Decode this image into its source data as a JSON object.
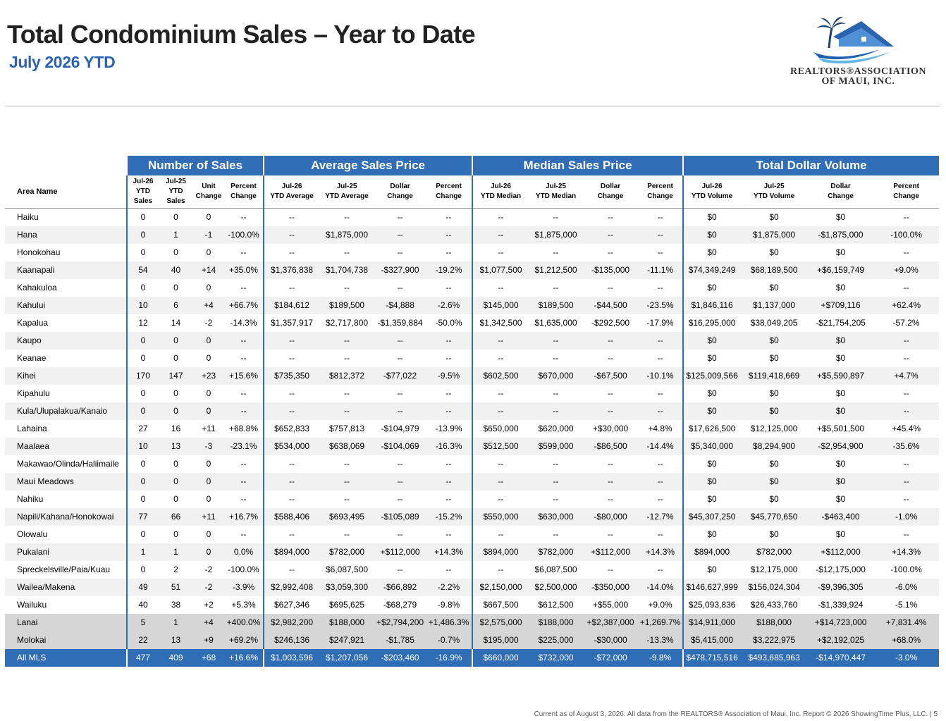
{
  "title": "Total Condominium Sales – Year to Date",
  "subtitle": "July 2026 YTD",
  "logo": {
    "line1": "REALTORS®ASSOCIATION",
    "line2": "OF MAUI, INC.",
    "icon": "palm-house-wave-logo"
  },
  "table": {
    "groups": [
      "Number of Sales",
      "Average Sales Price",
      "Median Sales Price",
      "Total Dollar Volume"
    ],
    "area_header": "Area Name",
    "columns": [
      [
        "Jul-26",
        "YTD",
        "Sales"
      ],
      [
        "Jul-25",
        "YTD",
        "Sales"
      ],
      [
        "Unit",
        "Change"
      ],
      [
        "Percent",
        "Change"
      ],
      [
        "Jul-26",
        "YTD Average"
      ],
      [
        "Jul-25",
        "YTD Average"
      ],
      [
        "Dollar",
        "Change"
      ],
      [
        "Percent",
        "Change"
      ],
      [
        "Jul-26",
        "YTD Median"
      ],
      [
        "Jul-25",
        "YTD Median"
      ],
      [
        "Dollar",
        "Change"
      ],
      [
        "Percent",
        "Change"
      ],
      [
        "Jul-26",
        "YTD Volume"
      ],
      [
        "Jul-25",
        "YTD Volume"
      ],
      [
        "Dollar",
        "Change"
      ],
      [
        "Percent",
        "Change"
      ]
    ],
    "rows": [
      [
        "Haiku",
        "0",
        "0",
        "0",
        "--",
        "--",
        "--",
        "--",
        "--",
        "--",
        "--",
        "--",
        "--",
        "$0",
        "$0",
        "$0",
        "--"
      ],
      [
        "Hana",
        "0",
        "1",
        "-1",
        "-100.0%",
        "--",
        "$1,875,000",
        "--",
        "--",
        "--",
        "$1,875,000",
        "--",
        "--",
        "$0",
        "$1,875,000",
        "-$1,875,000",
        "-100.0%"
      ],
      [
        "Honokohau",
        "0",
        "0",
        "0",
        "--",
        "--",
        "--",
        "--",
        "--",
        "--",
        "--",
        "--",
        "--",
        "$0",
        "$0",
        "$0",
        "--"
      ],
      [
        "Kaanapali",
        "54",
        "40",
        "+14",
        "+35.0%",
        "$1,376,838",
        "$1,704,738",
        "-$327,900",
        "-19.2%",
        "$1,077,500",
        "$1,212,500",
        "-$135,000",
        "-11.1%",
        "$74,349,249",
        "$68,189,500",
        "+$6,159,749",
        "+9.0%"
      ],
      [
        "Kahakuloa",
        "0",
        "0",
        "0",
        "--",
        "--",
        "--",
        "--",
        "--",
        "--",
        "--",
        "--",
        "--",
        "$0",
        "$0",
        "$0",
        "--"
      ],
      [
        "Kahului",
        "10",
        "6",
        "+4",
        "+66.7%",
        "$184,612",
        "$189,500",
        "-$4,888",
        "-2.6%",
        "$145,000",
        "$189,500",
        "-$44,500",
        "-23.5%",
        "$1,846,116",
        "$1,137,000",
        "+$709,116",
        "+62.4%"
      ],
      [
        "Kapalua",
        "12",
        "14",
        "-2",
        "-14.3%",
        "$1,357,917",
        "$2,717,800",
        "-$1,359,884",
        "-50.0%",
        "$1,342,500",
        "$1,635,000",
        "-$292,500",
        "-17.9%",
        "$16,295,000",
        "$38,049,205",
        "-$21,754,205",
        "-57.2%"
      ],
      [
        "Kaupo",
        "0",
        "0",
        "0",
        "--",
        "--",
        "--",
        "--",
        "--",
        "--",
        "--",
        "--",
        "--",
        "$0",
        "$0",
        "$0",
        "--"
      ],
      [
        "Keanae",
        "0",
        "0",
        "0",
        "--",
        "--",
        "--",
        "--",
        "--",
        "--",
        "--",
        "--",
        "--",
        "$0",
        "$0",
        "$0",
        "--"
      ],
      [
        "Kihei",
        "170",
        "147",
        "+23",
        "+15.6%",
        "$735,350",
        "$812,372",
        "-$77,022",
        "-9.5%",
        "$602,500",
        "$670,000",
        "-$67,500",
        "-10.1%",
        "$125,009,566",
        "$119,418,669",
        "+$5,590,897",
        "+4.7%"
      ],
      [
        "Kipahulu",
        "0",
        "0",
        "0",
        "--",
        "--",
        "--",
        "--",
        "--",
        "--",
        "--",
        "--",
        "--",
        "$0",
        "$0",
        "$0",
        "--"
      ],
      [
        "Kula/Ulupalakua/Kanaio",
        "0",
        "0",
        "0",
        "--",
        "--",
        "--",
        "--",
        "--",
        "--",
        "--",
        "--",
        "--",
        "$0",
        "$0",
        "$0",
        "--"
      ],
      [
        "Lahaina",
        "27",
        "16",
        "+11",
        "+68.8%",
        "$652,833",
        "$757,813",
        "-$104,979",
        "-13.9%",
        "$650,000",
        "$620,000",
        "+$30,000",
        "+4.8%",
        "$17,626,500",
        "$12,125,000",
        "+$5,501,500",
        "+45.4%"
      ],
      [
        "Maalaea",
        "10",
        "13",
        "-3",
        "-23.1%",
        "$534,000",
        "$638,069",
        "-$104,069",
        "-16.3%",
        "$512,500",
        "$599,000",
        "-$86,500",
        "-14.4%",
        "$5,340,000",
        "$8,294,900",
        "-$2,954,900",
        "-35.6%"
      ],
      [
        "Makawao/Olinda/Haliimaile",
        "0",
        "0",
        "0",
        "--",
        "--",
        "--",
        "--",
        "--",
        "--",
        "--",
        "--",
        "--",
        "$0",
        "$0",
        "$0",
        "--"
      ],
      [
        "Maui Meadows",
        "0",
        "0",
        "0",
        "--",
        "--",
        "--",
        "--",
        "--",
        "--",
        "--",
        "--",
        "--",
        "$0",
        "$0",
        "$0",
        "--"
      ],
      [
        "Nahiku",
        "0",
        "0",
        "0",
        "--",
        "--",
        "--",
        "--",
        "--",
        "--",
        "--",
        "--",
        "--",
        "$0",
        "$0",
        "$0",
        "--"
      ],
      [
        "Napili/Kahana/Honokowai",
        "77",
        "66",
        "+11",
        "+16.7%",
        "$588,406",
        "$693,495",
        "-$105,089",
        "-15.2%",
        "$550,000",
        "$630,000",
        "-$80,000",
        "-12.7%",
        "$45,307,250",
        "$45,770,650",
        "-$463,400",
        "-1.0%"
      ],
      [
        "Olowalu",
        "0",
        "0",
        "0",
        "--",
        "--",
        "--",
        "--",
        "--",
        "--",
        "--",
        "--",
        "--",
        "$0",
        "$0",
        "$0",
        "--"
      ],
      [
        "Pukalani",
        "1",
        "1",
        "0",
        "0.0%",
        "$894,000",
        "$782,000",
        "+$112,000",
        "+14.3%",
        "$894,000",
        "$782,000",
        "+$112,000",
        "+14.3%",
        "$894,000",
        "$782,000",
        "+$112,000",
        "+14.3%"
      ],
      [
        "Spreckelsville/Paia/Kuau",
        "0",
        "2",
        "-2",
        "-100.0%",
        "--",
        "$6,087,500",
        "--",
        "--",
        "--",
        "$6,087,500",
        "--",
        "--",
        "$0",
        "$12,175,000",
        "-$12,175,000",
        "-100.0%"
      ],
      [
        "Wailea/Makena",
        "49",
        "51",
        "-2",
        "-3.9%",
        "$2,992,408",
        "$3,059,300",
        "-$66,892",
        "-2.2%",
        "$2,150,000",
        "$2,500,000",
        "-$350,000",
        "-14.0%",
        "$146,627,999",
        "$156,024,304",
        "-$9,396,305",
        "-6.0%"
      ],
      [
        "Wailuku",
        "40",
        "38",
        "+2",
        "+5.3%",
        "$627,346",
        "$695,625",
        "-$68,279",
        "-9.8%",
        "$667,500",
        "$612,500",
        "+$55,000",
        "+9.0%",
        "$25,093,836",
        "$26,433,760",
        "-$1,339,924",
        "-5.1%"
      ],
      [
        "Lanai",
        "5",
        "1",
        "+4",
        "+400.0%",
        "$2,982,200",
        "$188,000",
        "+$2,794,200",
        "+1,486.3%",
        "$2,575,000",
        "$188,000",
        "+$2,387,000",
        "+1,269.7%",
        "$14,911,000",
        "$188,000",
        "+$14,723,000",
        "+7,831.4%"
      ],
      [
        "Molokai",
        "22",
        "13",
        "+9",
        "+69.2%",
        "$246,136",
        "$247,921",
        "-$1,785",
        "-0.7%",
        "$195,000",
        "$225,000",
        "-$30,000",
        "-13.3%",
        "$5,415,000",
        "$3,222,975",
        "+$2,192,025",
        "+68.0%"
      ],
      [
        "All MLS",
        "477",
        "409",
        "+68",
        "+16.6%",
        "$1,003,596",
        "$1,207,056",
        "-$203,460",
        "-16.9%",
        "$660,000",
        "$732,000",
        "-$72,000",
        "-9.8%",
        "$478,715,516",
        "$493,685,963",
        "-$14,970,447",
        "-3.0%"
      ]
    ]
  },
  "footer": "Current as of August 3, 2026. All data from the REALTORS® Association of Maui, Inc. Report © 2026 ShowingTime Plus, LLC.  |  5"
}
